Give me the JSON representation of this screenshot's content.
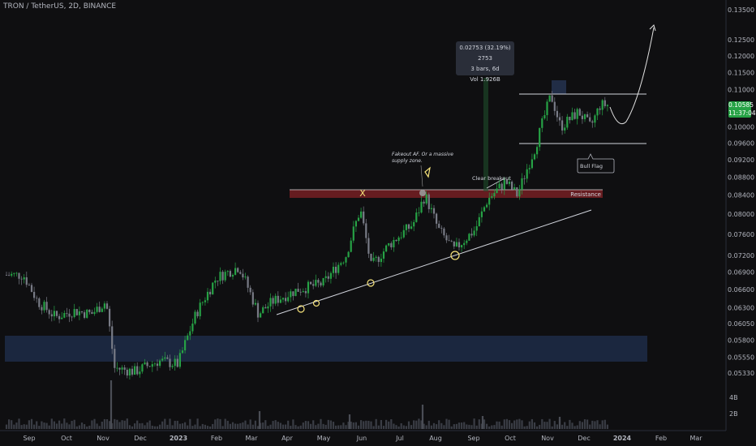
{
  "header": {
    "title": "TRON / TetherUS, 2D, BINANCE"
  },
  "price_tag": {
    "price": "0.10585",
    "countdown": "11:37:04"
  },
  "tooltip": {
    "line1": "0.02753 (32.19%) 2753",
    "line2": "3 bars, 6d",
    "line3": "Vol 1.926B"
  },
  "annotations": {
    "fakeout": [
      "Fakeout AF. Or a massive",
      "supply zone."
    ],
    "clear_breakout": "Clear breakout",
    "resistance": "Resistance",
    "bull_flag": "Bull Flag",
    "x_mark": "X"
  },
  "colors": {
    "background": "#0f0f11",
    "up_candle": "#26a245",
    "down_candle": "#787b86",
    "resistance_zone": "#6b1e22",
    "support_zone": "#1d2a45",
    "annotation_yellow": "#f5e27a"
  },
  "chart_data": {
    "type": "candlestick",
    "symbol": "TRON / TetherUS",
    "interval": "2D",
    "exchange": "BINANCE",
    "y_axis": {
      "scale": "log",
      "ticks": [
        "0.13500",
        "0.12500",
        "0.12000",
        "0.11500",
        "0.11000",
        "0.10585",
        "0.10000",
        "0.09600",
        "0.09200",
        "0.08800",
        "0.08400",
        "0.08000",
        "0.07600",
        "0.07200",
        "0.06900",
        "0.06600",
        "0.06300",
        "0.06050",
        "0.05800",
        "0.05550",
        "0.05330"
      ],
      "volume_ticks": [
        "4B",
        "2B"
      ]
    },
    "x_axis": {
      "ticks": [
        "Sep",
        "Oct",
        "Nov",
        "Dec",
        "2023",
        "Feb",
        "Mar",
        "Apr",
        "May",
        "Jun",
        "Jul",
        "Aug",
        "Sep",
        "Oct",
        "Nov",
        "Dec",
        "2024",
        "Feb",
        "Mar"
      ]
    },
    "series": [
      {
        "name": "Price",
        "points": [
          [
            "2022-08-24",
            0.0685
          ],
          [
            "2022-09-05",
            0.064
          ],
          [
            "2022-09-20",
            0.0615
          ],
          [
            "2022-10-05",
            0.0625
          ],
          [
            "2022-10-20",
            0.062
          ],
          [
            "2022-11-01",
            0.064
          ],
          [
            "2022-11-08",
            0.054
          ],
          [
            "2022-11-25",
            0.0535
          ],
          [
            "2022-12-15",
            0.055
          ],
          [
            "2022-12-31",
            0.0545
          ],
          [
            "2023-01-15",
            0.062
          ],
          [
            "2023-02-01",
            0.068
          ],
          [
            "2023-02-20",
            0.07
          ],
          [
            "2023-03-08",
            0.062
          ],
          [
            "2023-03-20",
            0.064
          ],
          [
            "2023-04-10",
            0.066
          ],
          [
            "2023-05-01",
            0.067
          ],
          [
            "2023-05-20",
            0.072
          ],
          [
            "2023-06-01",
            0.081
          ],
          [
            "2023-06-10",
            0.07
          ],
          [
            "2023-06-25",
            0.074
          ],
          [
            "2023-07-15",
            0.078
          ],
          [
            "2023-07-25",
            0.084
          ],
          [
            "2023-08-05",
            0.077
          ],
          [
            "2023-08-18",
            0.073
          ],
          [
            "2023-09-05",
            0.077
          ],
          [
            "2023-09-15",
            0.083
          ],
          [
            "2023-09-30",
            0.087
          ],
          [
            "2023-10-10",
            0.084
          ],
          [
            "2023-10-25",
            0.095
          ],
          [
            "2023-11-07",
            0.1085
          ],
          [
            "2023-11-15",
            0.1
          ],
          [
            "2023-11-30",
            0.104
          ],
          [
            "2023-12-10",
            0.1
          ],
          [
            "2023-12-18",
            0.1058
          ]
        ]
      }
    ],
    "projection": {
      "name": "Projected path",
      "target": 0.133
    },
    "resistance_zone": [
      0.0835,
      0.085
    ],
    "support_zone": [
      0.0555,
      0.059
    ],
    "bull_flag_range": [
      0.096,
      0.109
    ]
  }
}
